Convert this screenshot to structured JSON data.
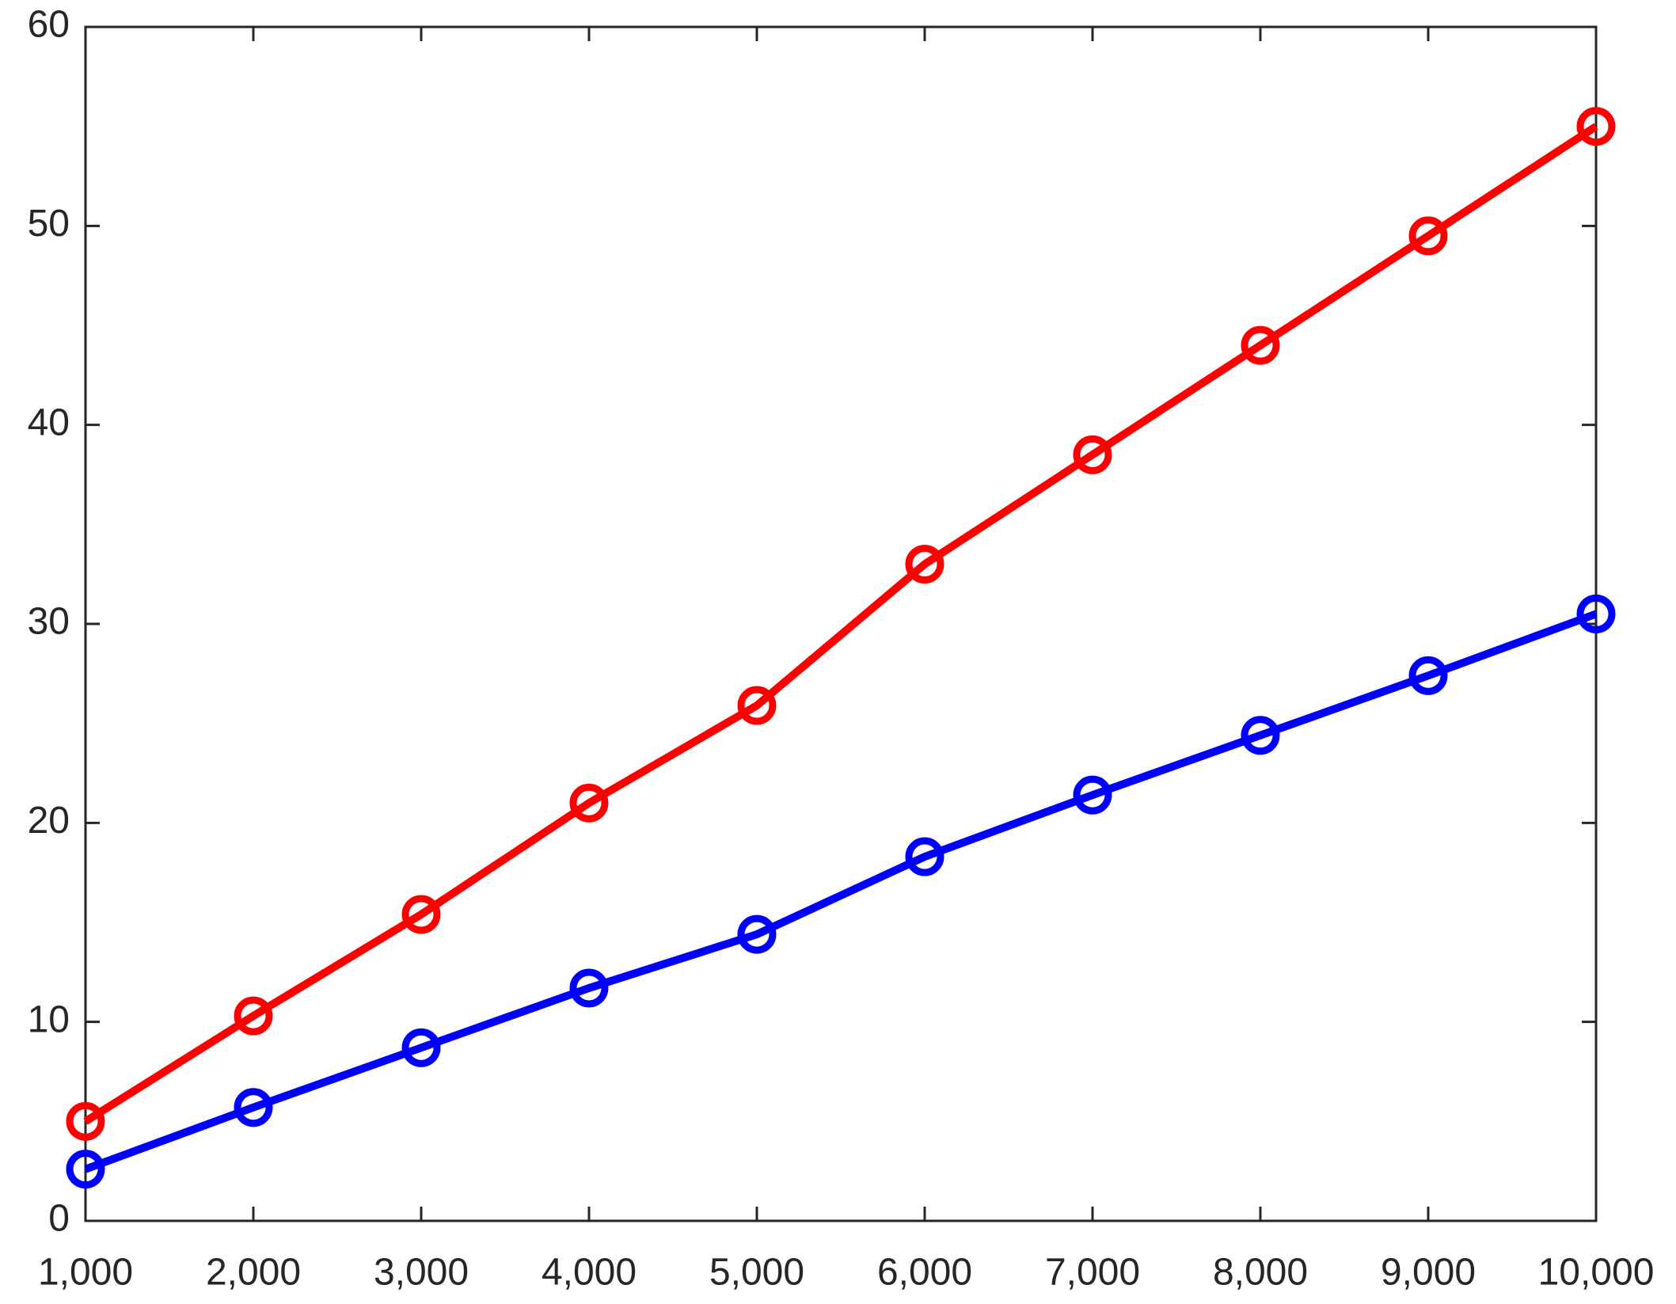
{
  "chart_data": {
    "type": "line",
    "x": [
      1000,
      2000,
      3000,
      4000,
      5000,
      6000,
      7000,
      8000,
      9000,
      10000
    ],
    "series": [
      {
        "color": "#ff0000",
        "values": [
          5,
          10.3,
          15.4,
          21,
          25.9,
          33,
          38.5,
          44,
          49.5,
          55
        ]
      },
      {
        "color": "#0000ff",
        "values": [
          2.6,
          5.7,
          8.7,
          11.7,
          14.4,
          18.3,
          21.4,
          24.4,
          27.4,
          30.5
        ]
      }
    ],
    "xlim": [
      1000,
      10000
    ],
    "xticks": [
      {
        "value": 1000,
        "label": "1,000"
      },
      {
        "value": 2000,
        "label": "2,000"
      },
      {
        "value": 3000,
        "label": "3,000"
      },
      {
        "value": 4000,
        "label": "4,000"
      },
      {
        "value": 5000,
        "label": "5,000"
      },
      {
        "value": 6000,
        "label": "6,000"
      },
      {
        "value": 7000,
        "label": "7,000"
      },
      {
        "value": 8000,
        "label": "8,000"
      },
      {
        "value": 9000,
        "label": "9,000"
      },
      {
        "value": 10000,
        "label": "10,000"
      }
    ],
    "ylim": [
      0,
      60
    ],
    "yticks": [
      0,
      10,
      20,
      30,
      40,
      50,
      60
    ],
    "marker": "open-circle",
    "grid": false
  }
}
